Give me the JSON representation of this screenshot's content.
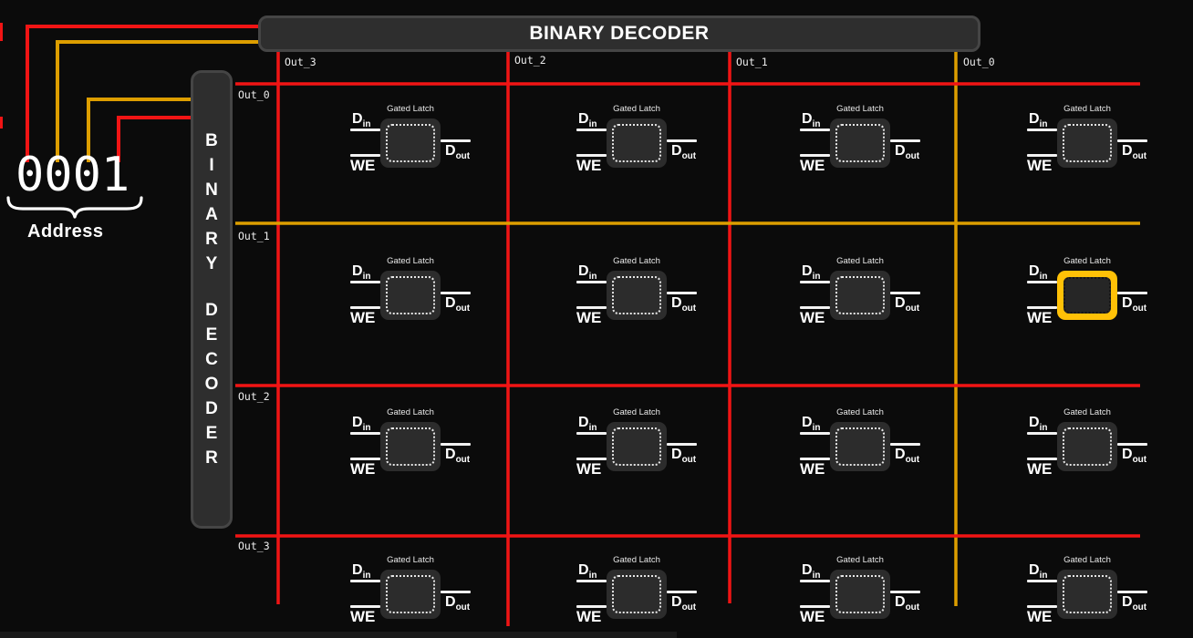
{
  "colors": {
    "red": "#f11414",
    "orange": "#dd9e00",
    "highlight": "#ffc107",
    "panel": "#2e2e2e",
    "panel-border": "#454545",
    "latch-fill": "#2c2c2c",
    "bg": "#0b0b0b"
  },
  "top_decoder": {
    "title": "BINARY DECODER"
  },
  "left_decoder": {
    "title": "BINARY DECODER"
  },
  "address": {
    "value": "0001",
    "label": "Address",
    "wires": [
      {
        "color": "red",
        "target": "top-decoder"
      },
      {
        "color": "orange",
        "target": "top-decoder"
      },
      {
        "color": "orange",
        "target": "left-decoder"
      },
      {
        "color": "red",
        "target": "left-decoder"
      }
    ]
  },
  "grid": {
    "columns": [
      "Out_3",
      "Out_2",
      "Out_1",
      "Out_0"
    ],
    "rows": [
      "Out_0",
      "Out_1",
      "Out_2",
      "Out_3"
    ],
    "active_column": "Out_0",
    "active_row": "Out_1",
    "latch": {
      "title": "Gated Latch",
      "din_main": "D",
      "din_sub": "in",
      "we": "WE",
      "dout_main": "D",
      "dout_sub": "out"
    }
  }
}
